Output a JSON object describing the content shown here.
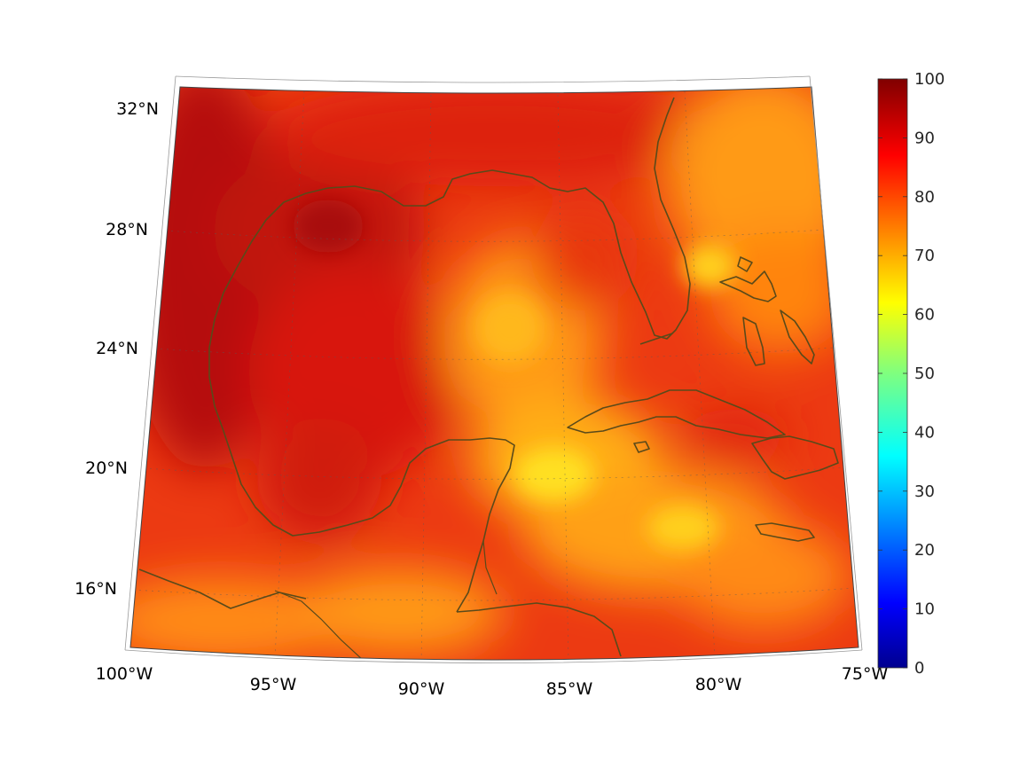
{
  "map": {
    "lon_labels": [
      "100°W",
      "95°W",
      "90°W",
      "85°W",
      "80°W",
      "75°W"
    ],
    "lat_labels": [
      "16°N",
      "20°N",
      "24°N",
      "28°N",
      "32°N"
    ],
    "lon_range": [
      -100,
      -75
    ],
    "lat_range": [
      14,
      33
    ],
    "colormap": "jet",
    "colors": {
      "coastline": "#5a4a1a",
      "field_dominant": "#e82a10",
      "field_high": "#b80c08",
      "field_low": "#ffd21a"
    }
  },
  "colorbar": {
    "range": [
      0,
      100
    ],
    "tick_labels": [
      "0",
      "10",
      "20",
      "30",
      "40",
      "50",
      "60",
      "70",
      "80",
      "90",
      "100"
    ]
  }
}
